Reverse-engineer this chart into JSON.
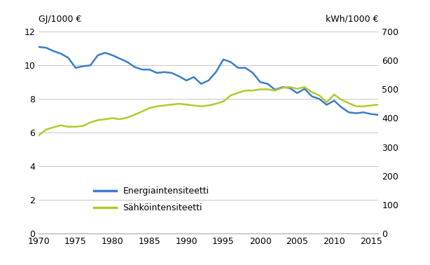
{
  "years": [
    1970,
    1971,
    1972,
    1973,
    1974,
    1975,
    1976,
    1977,
    1978,
    1979,
    1980,
    1981,
    1982,
    1983,
    1984,
    1985,
    1986,
    1987,
    1988,
    1989,
    1990,
    1991,
    1992,
    1993,
    1994,
    1995,
    1996,
    1997,
    1998,
    1999,
    2000,
    2001,
    2002,
    2003,
    2004,
    2005,
    2006,
    2007,
    2008,
    2009,
    2010,
    2011,
    2012,
    2013,
    2014,
    2015,
    2016
  ],
  "energy": [
    11.1,
    11.05,
    10.85,
    10.7,
    10.45,
    9.85,
    9.95,
    10.0,
    10.6,
    10.75,
    10.6,
    10.4,
    10.2,
    9.9,
    9.75,
    9.75,
    9.55,
    9.6,
    9.55,
    9.35,
    9.1,
    9.3,
    8.9,
    9.1,
    9.6,
    10.35,
    10.2,
    9.85,
    9.85,
    9.55,
    9.0,
    8.9,
    8.55,
    8.7,
    8.65,
    8.35,
    8.6,
    8.15,
    8.0,
    7.65,
    7.9,
    7.5,
    7.2,
    7.15,
    7.2,
    7.1,
    7.05
  ],
  "electricity": [
    340,
    360,
    368,
    375,
    370,
    370,
    373,
    385,
    393,
    396,
    400,
    396,
    402,
    412,
    423,
    435,
    441,
    444,
    447,
    450,
    447,
    444,
    441,
    444,
    450,
    458,
    479,
    488,
    496,
    496,
    500,
    500,
    496,
    505,
    508,
    502,
    508,
    490,
    479,
    455,
    482,
    464,
    452,
    441,
    441,
    444,
    447
  ],
  "energy_color": "#3a7dc9",
  "electricity_color": "#b5c92a",
  "energy_label": "Energiaintensiteetti",
  "electricity_label": "Sähköintensiteetti",
  "ylabel_left": "GJ/1000 €",
  "ylabel_right": "kWh/1000 €",
  "ylim_left": [
    0,
    12
  ],
  "ylim_right": [
    0,
    700
  ],
  "yticks_left": [
    0,
    2,
    4,
    6,
    8,
    10,
    12
  ],
  "yticks_right": [
    0,
    100,
    200,
    300,
    400,
    500,
    600,
    700
  ],
  "xlim": [
    1970,
    2016
  ],
  "xticks": [
    1970,
    1975,
    1980,
    1985,
    1990,
    1995,
    2000,
    2005,
    2010,
    2015
  ],
  "grid_color": "#c8c8c8",
  "linewidth": 1.8
}
